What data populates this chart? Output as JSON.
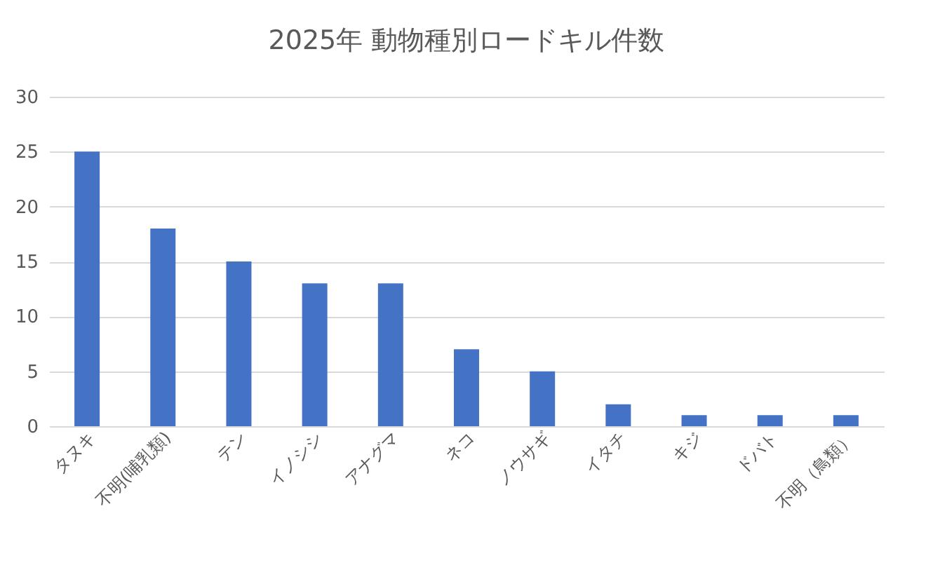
{
  "chart_data": {
    "type": "bar",
    "title": "2025年 動物種別ロードキル件数",
    "categories": [
      "タヌキ",
      "不明(哺乳類)",
      "テン",
      "イノシシ",
      "アナグマ",
      "ネコ",
      "ノウサギ",
      "イタチ",
      "キジ",
      "ドバト",
      "不明（鳥類）"
    ],
    "values": [
      25,
      18,
      15,
      13,
      13,
      7,
      5,
      2,
      1,
      1,
      1
    ],
    "color": "#4472c4",
    "ylim": [
      0,
      30
    ],
    "yticks": [
      0,
      5,
      10,
      15,
      20,
      25,
      30
    ],
    "grid": "y"
  }
}
